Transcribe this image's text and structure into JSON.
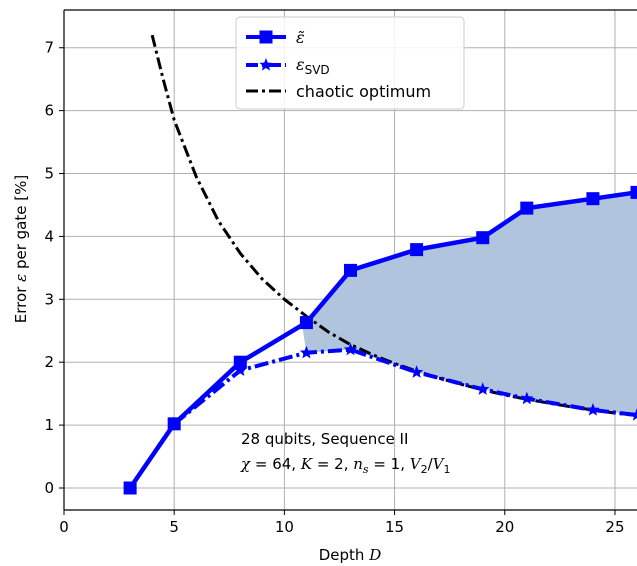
{
  "chart_data": {
    "type": "line",
    "xlabel": "Depth D",
    "ylabel": "Error ε per gate [%]",
    "xlim": [
      0,
      26
    ],
    "ylim": [
      -0.35,
      7.6
    ],
    "xticks": [
      0,
      5,
      10,
      15,
      20,
      25
    ],
    "yticks": [
      0,
      1,
      2,
      3,
      4,
      5,
      6,
      7
    ],
    "grid": true,
    "legend_position": "top-center",
    "colors": {
      "series": "#0000ff",
      "fill": "#b0c4de",
      "optimum": "#000000"
    },
    "series": [
      {
        "name": "ε̃",
        "marker": "square",
        "linestyle": "solid",
        "x": [
          3,
          5,
          8,
          11,
          13,
          16,
          19,
          21,
          24,
          26
        ],
        "y": [
          0.0,
          1.02,
          2.0,
          2.63,
          3.46,
          3.79,
          3.98,
          4.45,
          4.6,
          4.7
        ]
      },
      {
        "name": "ε_SVD",
        "marker": "star",
        "linestyle": "dashdot",
        "x": [
          5,
          8,
          11,
          13,
          16,
          19,
          21,
          24,
          26
        ],
        "y": [
          1.02,
          1.87,
          2.15,
          2.2,
          1.84,
          1.57,
          1.42,
          1.24,
          1.16
        ]
      },
      {
        "name": "chaotic optimum",
        "marker": "none",
        "linestyle": "dashdot",
        "x": [
          4,
          4.5,
          5,
          6,
          7,
          8,
          9,
          10,
          11,
          12,
          13,
          14,
          15,
          16,
          17,
          18,
          19,
          20,
          21,
          22,
          23,
          24,
          25,
          26
        ],
        "y": [
          7.2,
          6.5,
          5.85,
          4.95,
          4.25,
          3.73,
          3.32,
          3.0,
          2.73,
          2.48,
          2.28,
          2.12,
          1.98,
          1.86,
          1.75,
          1.65,
          1.56,
          1.48,
          1.41,
          1.35,
          1.29,
          1.24,
          1.19,
          1.15
        ]
      }
    ],
    "annotation": {
      "line1": "28 qubits, Sequence II",
      "line2": "χ = 64, K = 2, n_s = 1, V2/V1"
    }
  }
}
